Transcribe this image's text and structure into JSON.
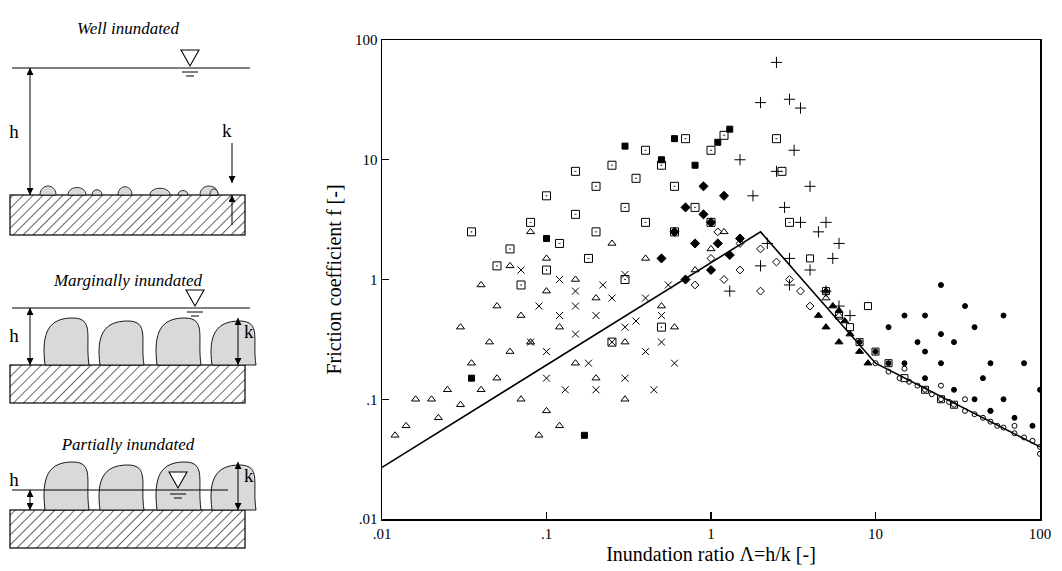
{
  "chart_data": {
    "type": "scatter",
    "x_label": "Inundation ratio Λ=h/k [-]",
    "y_label": "Friction coefficient f [-]",
    "log": true,
    "grid": false,
    "xlim": [
      0.01,
      100
    ],
    "ylim": [
      0.01,
      100
    ],
    "xticks": [
      {
        "value": 0.01,
        "label": ".01"
      },
      {
        "value": 0.1,
        "label": ".1"
      },
      1,
      10,
      100
    ],
    "yticks": [
      {
        "value": 0.01,
        "label": ".01"
      },
      {
        "value": 0.1,
        "label": ".1"
      },
      1,
      10,
      100
    ],
    "series": [
      {
        "type": "scatter",
        "marker": "triangle-open",
        "color": "#000000",
        "x": [
          0.012,
          0.014,
          0.016,
          0.02,
          0.022,
          0.025,
          0.03,
          0.03,
          0.035,
          0.04,
          0.04,
          0.045,
          0.05,
          0.05,
          0.06,
          0.06,
          0.07,
          0.07,
          0.08,
          0.08,
          0.09,
          0.1,
          0.1,
          0.1,
          0.12,
          0.12,
          0.15,
          0.15,
          0.2,
          0.2,
          0.25,
          0.3,
          0.3,
          0.4,
          0.5,
          0.6,
          0.8,
          1.0,
          1.2,
          5,
          6
        ],
        "values": [
          0.05,
          0.06,
          0.1,
          0.1,
          0.07,
          0.12,
          0.09,
          0.4,
          0.2,
          0.12,
          0.9,
          0.3,
          0.6,
          0.15,
          1.3,
          0.25,
          0.5,
          0.1,
          2.5,
          0.3,
          0.05,
          1.5,
          0.8,
          0.08,
          0.4,
          0.06,
          0.2,
          1.0,
          0.15,
          0.7,
          2.0,
          0.3,
          0.1,
          1.5,
          0.6,
          0.4,
          1.2,
          1.8,
          2.5,
          0.7,
          0.5
        ]
      },
      {
        "type": "scatter",
        "marker": "x",
        "color": "#000000",
        "x": [
          0.07,
          0.08,
          0.09,
          0.1,
          0.1,
          0.12,
          0.12,
          0.13,
          0.15,
          0.15,
          0.18,
          0.2,
          0.2,
          0.22,
          0.25,
          0.25,
          0.3,
          0.3,
          0.35,
          0.4,
          0.4,
          0.45,
          0.5,
          0.55,
          0.6,
          0.3,
          0.15,
          0.5
        ],
        "values": [
          1.2,
          0.3,
          0.6,
          0.25,
          0.15,
          0.5,
          1.0,
          0.12,
          0.35,
          0.8,
          0.2,
          0.5,
          0.12,
          0.9,
          0.3,
          0.7,
          0.15,
          1.1,
          0.45,
          0.25,
          0.7,
          0.12,
          0.5,
          0.9,
          0.2,
          0.4,
          0.6,
          0.3
        ]
      },
      {
        "type": "scatter",
        "marker": "square-dot-open",
        "color": "#000000",
        "x": [
          0.035,
          0.05,
          0.06,
          0.07,
          0.08,
          0.1,
          0.1,
          0.12,
          0.15,
          0.15,
          0.18,
          0.2,
          0.2,
          0.25,
          0.3,
          0.3,
          0.35,
          0.4,
          0.4,
          0.5,
          0.5,
          0.6,
          0.7,
          0.8,
          1.0,
          1.0,
          1.2,
          2.5,
          2.7,
          3.0,
          0.25,
          0.6
        ],
        "values": [
          2.5,
          1.3,
          1.8,
          0.9,
          3.0,
          5.0,
          1.2,
          2.0,
          8.0,
          3.5,
          1.5,
          6.0,
          2.5,
          9.0,
          4.0,
          1.0,
          7.0,
          12.0,
          3.0,
          9.0,
          0.4,
          6.0,
          15.0,
          4.0,
          12.0,
          3.0,
          16.0,
          15.0,
          8.0,
          3.0,
          0.3,
          2.5
        ]
      },
      {
        "type": "scatter",
        "marker": "square",
        "color": "#000000",
        "x": [
          0.035,
          0.17,
          0.1,
          0.3,
          0.5,
          0.6,
          0.8,
          1.1,
          1.3
        ],
        "values": [
          0.15,
          0.05,
          2.2,
          13,
          10,
          15,
          9,
          14,
          18
        ]
      },
      {
        "type": "scatter",
        "marker": "diamond",
        "color": "#000000",
        "x": [
          0.5,
          0.6,
          0.7,
          0.8,
          0.9,
          1.0,
          1.0,
          1.1,
          1.2,
          1.3,
          1.5,
          0.7,
          0.9
        ],
        "values": [
          1.5,
          2.5,
          4.0,
          2.0,
          6.0,
          3.0,
          1.2,
          2.0,
          5.0,
          1.6,
          2.2,
          1.0,
          3.5
        ]
      },
      {
        "type": "scatter",
        "marker": "plus",
        "color": "#000000",
        "x": [
          1.5,
          1.8,
          2.0,
          2.2,
          2.5,
          2.5,
          2.8,
          3.0,
          3.0,
          3.2,
          3.5,
          3.5,
          4.0,
          4.0,
          4.5,
          5.0,
          5.0,
          5.5,
          6.0,
          6.0,
          7.0,
          2.0,
          3.0,
          1.3
        ],
        "values": [
          10,
          5,
          30,
          2,
          65,
          8,
          4,
          32,
          1.5,
          12,
          27,
          3,
          6,
          1.2,
          2.5,
          3,
          0.8,
          1.5,
          0.6,
          2,
          0.5,
          1.3,
          0.9,
          0.8
        ]
      },
      {
        "type": "scatter",
        "marker": "diamond-open",
        "color": "#000000",
        "x": [
          0.8,
          1.0,
          1.2,
          1.5,
          1.5,
          2.0,
          2.0,
          2.5,
          3.0,
          3.5,
          4.0,
          1.1
        ],
        "values": [
          0.9,
          1.5,
          1.0,
          2.0,
          1.2,
          1.8,
          0.8,
          1.4,
          1.0,
          0.8,
          0.6,
          2.5
        ]
      },
      {
        "type": "scatter",
        "marker": "triangle",
        "color": "#000000",
        "x": [
          4.5,
          5.0,
          5.5,
          6.0,
          6.5,
          7.0,
          8.0,
          9.0,
          5.0,
          6.0
        ],
        "values": [
          0.5,
          0.4,
          0.6,
          0.3,
          0.45,
          0.35,
          0.25,
          0.2,
          0.8,
          0.55
        ]
      },
      {
        "type": "scatter",
        "marker": "square-open",
        "color": "#000000",
        "x": [
          4.0,
          5.0,
          6.0,
          7.0,
          8.0,
          10,
          12,
          15,
          20,
          25,
          30,
          9.0
        ],
        "values": [
          1.5,
          0.8,
          0.5,
          0.4,
          0.3,
          0.25,
          0.2,
          0.15,
          0.12,
          0.1,
          0.09,
          0.6
        ]
      },
      {
        "type": "scatter",
        "marker": "dot",
        "color": "#000000",
        "x": [
          8,
          10,
          12,
          15,
          15,
          18,
          20,
          20,
          25,
          25,
          30,
          30,
          35,
          40,
          40,
          50,
          50,
          60,
          60,
          70,
          80,
          90,
          100,
          25,
          45,
          20,
          12
        ],
        "values": [
          0.3,
          0.25,
          0.4,
          0.2,
          0.5,
          0.3,
          0.15,
          0.5,
          0.9,
          0.2,
          0.12,
          0.3,
          0.6,
          0.1,
          0.4,
          0.08,
          0.2,
          0.5,
          0.1,
          0.07,
          0.2,
          0.06,
          0.12,
          0.35,
          0.15,
          0.25,
          0.2
        ]
      },
      {
        "type": "scatter",
        "marker": "circle-open",
        "color": "#000000",
        "x": [
          10,
          12,
          14,
          16,
          18,
          20,
          22,
          25,
          28,
          30,
          35,
          40,
          45,
          50,
          55,
          60,
          70,
          80,
          90,
          100,
          15,
          25,
          35,
          50,
          70,
          100
        ],
        "values": [
          0.2,
          0.17,
          0.15,
          0.14,
          0.13,
          0.12,
          0.11,
          0.1,
          0.095,
          0.09,
          0.08,
          0.075,
          0.07,
          0.065,
          0.06,
          0.058,
          0.052,
          0.048,
          0.045,
          0.04,
          0.18,
          0.13,
          0.1,
          0.08,
          0.06,
          0.035
        ]
      },
      {
        "type": "line",
        "line_style": "solid",
        "color": "#000000",
        "x": [
          0.01,
          2,
          10,
          100
        ],
        "values": [
          0.027,
          2.5,
          0.2,
          0.04
        ]
      }
    ]
  },
  "diagrams": [
    {
      "title": "Well inundated",
      "depth_label": "h",
      "roughness_label": "k"
    },
    {
      "title": "Marginally inundated",
      "depth_label": "h",
      "roughness_label": "k"
    },
    {
      "title": "Partially inundated",
      "depth_label": "h",
      "roughness_label": "k"
    }
  ]
}
